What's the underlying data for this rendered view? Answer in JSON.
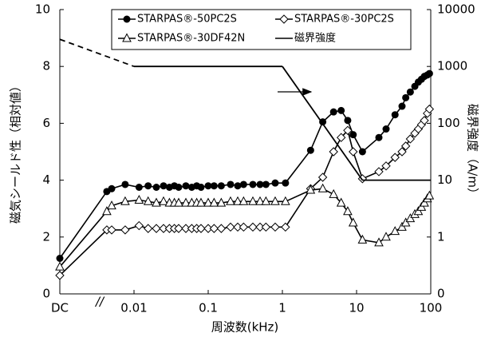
{
  "chart_data": {
    "type": "line",
    "x_label": "周波数(kHz)",
    "y_label": "磁気シールド性（相対値）",
    "y2_label": "磁界強度（A/m）",
    "xscale": "log",
    "y2scale": "log",
    "xlim": [
      0.001,
      100
    ],
    "xticks": [
      {
        "value": 0.001,
        "label": "DC"
      },
      0.01,
      0.1,
      1,
      10,
      100
    ],
    "ylim": [
      0,
      10
    ],
    "yticks": [
      0,
      2,
      4,
      6,
      8,
      10
    ],
    "y2lim": [
      0.1,
      10000
    ],
    "y2ticks": [
      {
        "value": 0.1,
        "label": "0"
      },
      1,
      10,
      100,
      1000,
      10000
    ],
    "series": [
      {
        "name": "STARPAS®-50PC2S",
        "color": "#000000",
        "marker": "circle",
        "x": [
          0.001,
          0.0043,
          0.005,
          0.0076,
          0.0117,
          0.0155,
          0.02,
          0.025,
          0.03,
          0.035,
          0.04,
          0.05,
          0.06,
          0.07,
          0.08,
          0.1,
          0.12,
          0.15,
          0.2,
          0.25,
          0.3,
          0.4,
          0.5,
          0.6,
          0.8,
          1.1,
          2.4,
          3.5,
          4.9,
          6.2,
          7.6,
          9,
          12,
          20,
          25,
          33,
          41,
          46,
          53,
          61,
          68,
          75,
          82,
          90,
          96
        ],
        "values": [
          1.25,
          3.6,
          3.7,
          3.85,
          3.75,
          3.8,
          3.75,
          3.8,
          3.75,
          3.8,
          3.75,
          3.8,
          3.75,
          3.8,
          3.75,
          3.8,
          3.8,
          3.8,
          3.85,
          3.8,
          3.85,
          3.85,
          3.85,
          3.85,
          3.9,
          3.9,
          5.05,
          6.05,
          6.4,
          6.45,
          6.1,
          5.6,
          5.0,
          5.5,
          5.8,
          6.3,
          6.6,
          6.9,
          7.1,
          7.3,
          7.45,
          7.55,
          7.65,
          7.7,
          7.75
        ]
      },
      {
        "name": "STARPAS®-30PC2S",
        "color": "#000000",
        "marker": "diamond",
        "x": [
          0.001,
          0.0043,
          0.005,
          0.0076,
          0.0117,
          0.0155,
          0.02,
          0.025,
          0.03,
          0.035,
          0.04,
          0.05,
          0.06,
          0.07,
          0.08,
          0.1,
          0.12,
          0.15,
          0.2,
          0.25,
          0.3,
          0.4,
          0.5,
          0.6,
          0.8,
          1.1,
          2.4,
          3.5,
          4.9,
          6.2,
          7.6,
          9,
          12,
          20,
          25,
          33,
          41,
          46,
          53,
          61,
          68,
          75,
          82,
          90,
          96
        ],
        "values": [
          0.65,
          2.25,
          2.25,
          2.25,
          2.4,
          2.3,
          2.3,
          2.3,
          2.3,
          2.3,
          2.3,
          2.3,
          2.3,
          2.3,
          2.3,
          2.3,
          2.3,
          2.3,
          2.35,
          2.35,
          2.35,
          2.35,
          2.35,
          2.35,
          2.35,
          2.35,
          3.7,
          4.1,
          5.0,
          5.5,
          5.75,
          5.0,
          4.05,
          4.3,
          4.5,
          4.8,
          5.0,
          5.2,
          5.45,
          5.65,
          5.8,
          5.95,
          6.1,
          6.35,
          6.5
        ]
      },
      {
        "name": "STARPAS®-30DF42N",
        "color": "#000000",
        "marker": "triangle",
        "x": [
          0.001,
          0.0043,
          0.005,
          0.0076,
          0.0117,
          0.0155,
          0.02,
          0.025,
          0.03,
          0.035,
          0.04,
          0.05,
          0.06,
          0.07,
          0.08,
          0.1,
          0.12,
          0.15,
          0.2,
          0.25,
          0.3,
          0.4,
          0.5,
          0.6,
          0.8,
          1.1,
          2.4,
          3.5,
          4.9,
          6.2,
          7.6,
          9,
          12,
          20,
          25,
          33,
          41,
          46,
          53,
          61,
          68,
          75,
          82,
          90,
          96
        ],
        "values": [
          0.95,
          2.9,
          3.1,
          3.25,
          3.3,
          3.25,
          3.2,
          3.25,
          3.2,
          3.2,
          3.2,
          3.2,
          3.2,
          3.2,
          3.2,
          3.2,
          3.2,
          3.2,
          3.25,
          3.25,
          3.25,
          3.25,
          3.25,
          3.25,
          3.25,
          3.25,
          3.65,
          3.7,
          3.5,
          3.2,
          2.9,
          2.5,
          1.9,
          1.8,
          2.0,
          2.2,
          2.35,
          2.5,
          2.65,
          2.8,
          2.9,
          3.05,
          3.2,
          3.35,
          3.45
        ]
      },
      {
        "name": "磁界強度",
        "color": "#000000",
        "marker": "none",
        "axis": "y2",
        "dashed_segments": [
          0
        ],
        "x": [
          0.001,
          0.01,
          1,
          12,
          100
        ],
        "values": [
          3000,
          1000,
          1000,
          10,
          10
        ]
      }
    ]
  }
}
